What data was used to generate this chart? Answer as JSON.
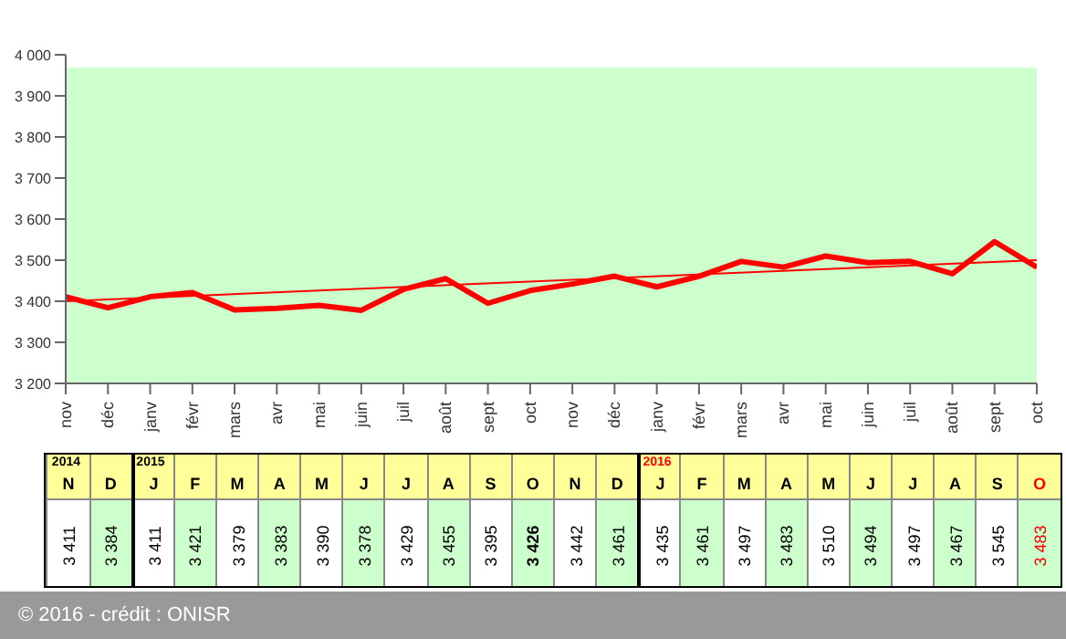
{
  "chart_data": {
    "type": "line",
    "categories": [
      "nov",
      "déc",
      "janv",
      "févr",
      "mars",
      "avr",
      "mai",
      "juin",
      "juil",
      "août",
      "sept",
      "oct",
      "nov",
      "déc",
      "janv",
      "févr",
      "mars",
      "avr",
      "mai",
      "juin",
      "juil",
      "août",
      "sept",
      "oct"
    ],
    "series": [
      {
        "color": "#ff0000",
        "values": [
          3411,
          3384,
          3411,
          3421,
          3379,
          3383,
          3390,
          3378,
          3429,
          3455,
          3395,
          3426,
          3442,
          3461,
          3435,
          3461,
          3497,
          3483,
          3510,
          3494,
          3497,
          3467,
          3545,
          3483
        ],
        "value_labels": [
          "3 411",
          "3 384",
          "3 411",
          "3 421",
          "3 379",
          "3 383",
          "3 390",
          "3 378",
          "3 429",
          "3 455",
          "3 395",
          "3 426",
          "3 442",
          "3 461",
          "3 435",
          "3 461",
          "3 497",
          "3 483",
          "3 510",
          "3 494",
          "3 497",
          "3 467",
          "3 545",
          "3 483"
        ]
      },
      {
        "type": "line",
        "color": "#ff0000",
        "values": [
          3400,
          null,
          null,
          null,
          null,
          null,
          null,
          null,
          null,
          null,
          null,
          null,
          null,
          null,
          null,
          null,
          null,
          null,
          null,
          null,
          null,
          null,
          null,
          3500
        ]
      }
    ],
    "ylim": [
      3200,
      4000
    ],
    "yticks": [
      {
        "value": 3200,
        "label": "3 200"
      },
      {
        "value": 3300,
        "label": "3 300"
      },
      {
        "value": 3400,
        "label": "3 400"
      },
      {
        "value": 3500,
        "label": "3 500"
      },
      {
        "value": 3600,
        "label": "3 600"
      },
      {
        "value": 3700,
        "label": "3 700"
      },
      {
        "value": 3800,
        "label": "3 800"
      },
      {
        "value": 3900,
        "label": "3 900"
      },
      {
        "value": 4000,
        "label": "4 000"
      }
    ],
    "marker": "none",
    "annotations": [
      "2014",
      "2015",
      "2016",
      "N",
      "D",
      "J",
      "F",
      "M",
      "A",
      "M",
      "J",
      "J",
      "A",
      "S",
      "O",
      "N",
      "D",
      "J",
      "F",
      "M",
      "A",
      "M",
      "J",
      "J",
      "A",
      "S",
      "O",
      "© 2016 - crédit : ONISR"
    ]
  }
}
